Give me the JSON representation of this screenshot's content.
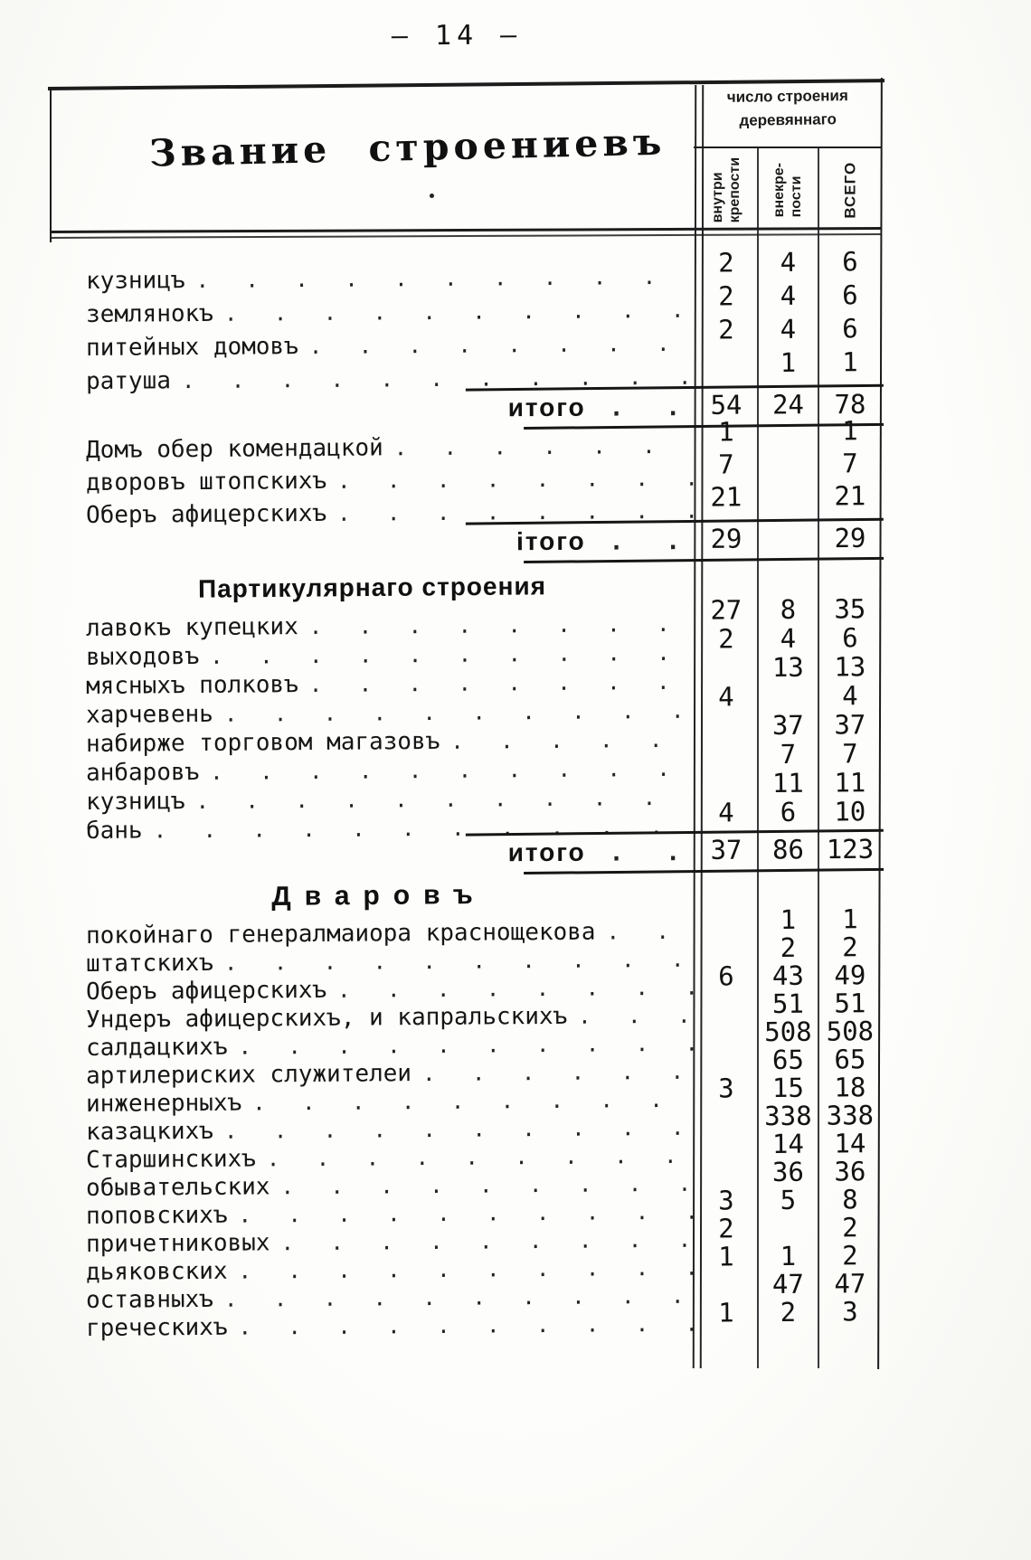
{
  "page": {
    "number_display": "— 14 —"
  },
  "table": {
    "title": "Звание строениевъ",
    "header": {
      "group_title": "число строения\nдеревяннаго",
      "columns": [
        "внутри\nкрепости",
        "внекре-\nпости",
        "ВСЕГО"
      ]
    },
    "sections": [
      {
        "heading": null,
        "rows": [
          {
            "label": "кузницъ",
            "inner": "2",
            "outer": "4",
            "total": "6"
          },
          {
            "label": "землянокъ",
            "inner": "2",
            "outer": "4",
            "total": "6"
          },
          {
            "label": "питейных домовъ",
            "inner": "2",
            "outer": "4",
            "total": "6"
          },
          {
            "label": "ратуша",
            "inner": "",
            "outer": "1",
            "total": "1"
          }
        ],
        "total_row": {
          "label": "итого",
          "inner": "54",
          "outer": "24",
          "total": "78"
        }
      },
      {
        "heading": null,
        "rows": [
          {
            "label": "Домъ обер комендацкой",
            "inner": "1",
            "outer": "",
            "total": "1"
          },
          {
            "label": "дворовъ штопскихъ",
            "inner": "7",
            "outer": "",
            "total": "7"
          },
          {
            "label": "Оберъ афицерскихъ",
            "inner": "21",
            "outer": "",
            "total": "21"
          }
        ],
        "total_row": {
          "label": "ітого",
          "inner": "29",
          "outer": "",
          "total": "29"
        }
      },
      {
        "heading": "Партикулярнаго строения",
        "rows": [
          {
            "label": "лавокъ купецких",
            "inner": "27",
            "outer": "8",
            "total": "35"
          },
          {
            "label": "выходовъ",
            "inner": "2",
            "outer": "4",
            "total": "6"
          },
          {
            "label": "мясныхъ полковъ",
            "inner": "",
            "outer": "13",
            "total": "13"
          },
          {
            "label": "харчевень",
            "inner": "4",
            "outer": "",
            "total": "4"
          },
          {
            "label": "набирже торговом магазовъ",
            "inner": "",
            "outer": "37",
            "total": "37"
          },
          {
            "label": "анбаровъ",
            "inner": "",
            "outer": "7",
            "total": "7"
          },
          {
            "label": "кузницъ",
            "inner": "",
            "outer": "11",
            "total": "11"
          },
          {
            "label": "бань",
            "inner": "4",
            "outer": "6",
            "total": "10"
          }
        ],
        "total_row": {
          "label": "итого",
          "inner": "37",
          "outer": "86",
          "total": "123"
        }
      },
      {
        "heading": "Дваровъ",
        "rows": [
          {
            "label": "покойнаго генералмаиора краснощекова",
            "inner": "",
            "outer": "1",
            "total": "1"
          },
          {
            "label": "штатскихъ",
            "inner": "",
            "outer": "2",
            "total": "2"
          },
          {
            "label": "Оберъ афицерскихъ",
            "inner": "6",
            "outer": "43",
            "total": "49"
          },
          {
            "label": "Ундеръ афицерскихъ, и капральскихъ",
            "inner": "",
            "outer": "51",
            "total": "51"
          },
          {
            "label": "салдацкихъ",
            "inner": "",
            "outer": "508",
            "total": "508"
          },
          {
            "label": "артилериских служителеи",
            "inner": "",
            "outer": "65",
            "total": "65"
          },
          {
            "label": "инженерныхъ",
            "inner": "3",
            "outer": "15",
            "total": "18"
          },
          {
            "label": "казацкихъ",
            "inner": "",
            "outer": "338",
            "total": "338"
          },
          {
            "label": "Старшинскихъ",
            "inner": "",
            "outer": "14",
            "total": "14"
          },
          {
            "label": "обывательских",
            "inner": "",
            "outer": "36",
            "total": "36"
          },
          {
            "label": "поповскихъ",
            "inner": "3",
            "outer": "5",
            "total": "8"
          },
          {
            "label": "причетниковых",
            "inner": "2",
            "outer": "",
            "total": "2"
          },
          {
            "label": "дьяковских",
            "inner": "1",
            "outer": "1",
            "total": "2"
          },
          {
            "label": "оставныхъ",
            "inner": "",
            "outer": "47",
            "total": "47"
          },
          {
            "label": "греческихъ",
            "inner": "1",
            "outer": "2",
            "total": "3"
          }
        ],
        "total_row": null
      }
    ]
  }
}
